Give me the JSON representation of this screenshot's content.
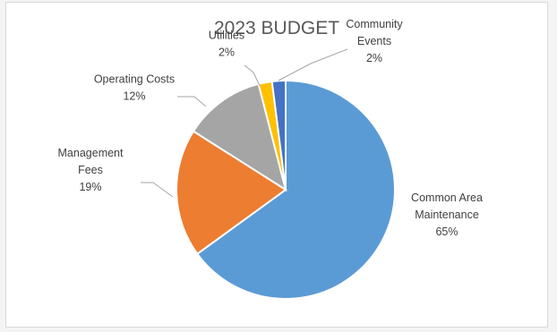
{
  "chart_data": {
    "type": "pie",
    "title": "2023 BUDGET",
    "slices": [
      {
        "label": [
          "Common Area",
          "Maintenance"
        ],
        "value": 65,
        "pct_text": "65%",
        "color": "#5b9bd5"
      },
      {
        "label": [
          "Management",
          "Fees"
        ],
        "value": 19,
        "pct_text": "19%",
        "color": "#ed7d31"
      },
      {
        "label": [
          "Operating Costs"
        ],
        "value": 12,
        "pct_text": "12%",
        "color": "#a5a5a5"
      },
      {
        "label": [
          "Utilities"
        ],
        "value": 2,
        "pct_text": "2%",
        "color": "#ffc000"
      },
      {
        "label": [
          "Community",
          "Events"
        ],
        "value": 2,
        "pct_text": "2%",
        "color": "#4472c4"
      }
    ],
    "legend": "none",
    "start_angle_deg": 0,
    "direction": "clockwise"
  }
}
